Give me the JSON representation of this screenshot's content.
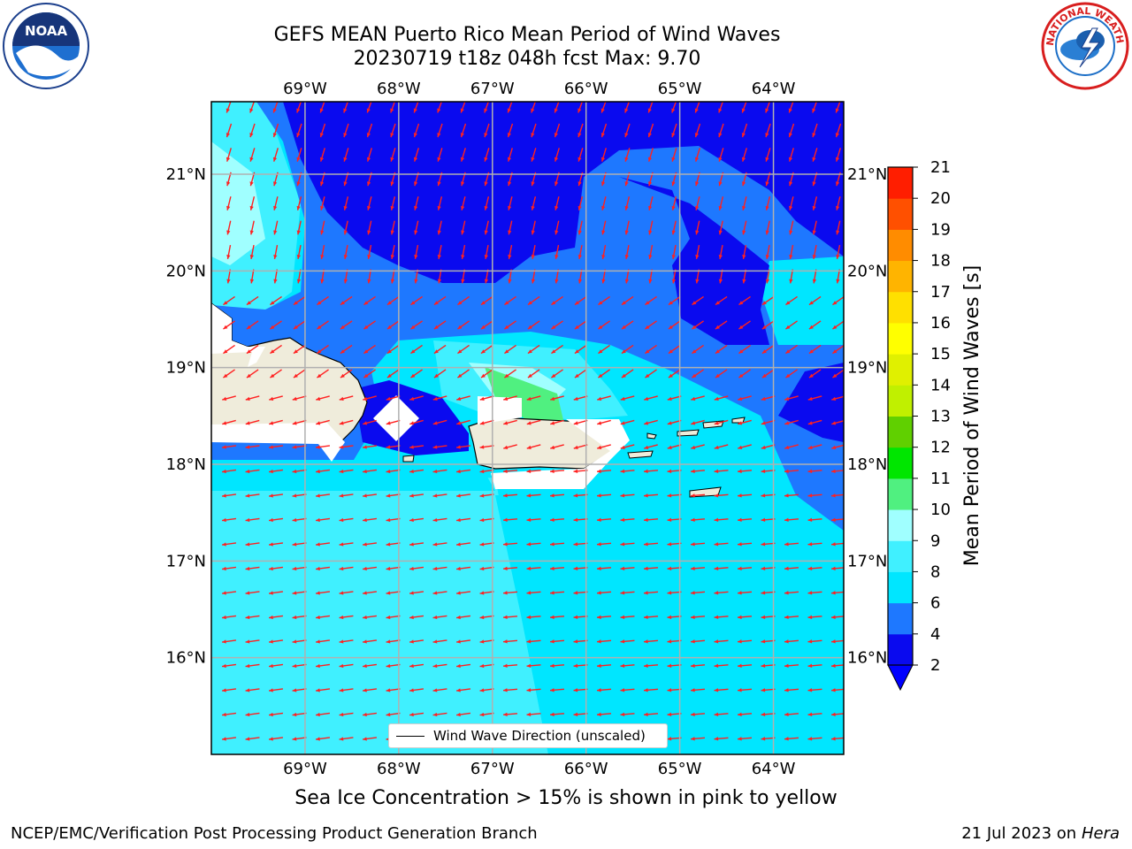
{
  "title": {
    "line1": "GEFS MEAN Puerto Rico Mean Period of Wind Waves",
    "line2": "20230719 t18z 048h fcst   Max: 9.70"
  },
  "logos": {
    "left": "noaa-logo",
    "left_text": "NOAA",
    "right": "nws-logo",
    "right_text": "NATIONAL WEATHER SERVICE"
  },
  "map": {
    "lon_range": [
      -70.0,
      -63.25
    ],
    "lat_range": [
      15.0,
      21.75
    ],
    "lon_labels": [
      {
        "value": -69,
        "label": "69°W"
      },
      {
        "value": -68,
        "label": "68°W"
      },
      {
        "value": -67,
        "label": "67°W"
      },
      {
        "value": -66,
        "label": "66°W"
      },
      {
        "value": -65,
        "label": "65°W"
      },
      {
        "value": -64,
        "label": "64°W"
      }
    ],
    "lat_labels": [
      {
        "value": 21,
        "label": "21°N"
      },
      {
        "value": 20,
        "label": "20°N"
      },
      {
        "value": 19,
        "label": "19°N"
      },
      {
        "value": 18,
        "label": "18°N"
      },
      {
        "value": 17,
        "label": "17°N"
      },
      {
        "value": 16,
        "label": "16°N"
      }
    ],
    "grid": true,
    "land_color": "#efecdb",
    "arrow_color": "#ff2020"
  },
  "colorbar": {
    "label": "Mean Period of Wind Waves [s]",
    "ticks": [
      "2",
      "4",
      "6",
      "8",
      "9",
      "10",
      "11",
      "12",
      "13",
      "14",
      "15",
      "16",
      "17",
      "18",
      "19",
      "20",
      "21"
    ],
    "colors": [
      "#0a0aef",
      "#1e78ff",
      "#00e6ff",
      "#40f0ff",
      "#a0ffff",
      "#50f080",
      "#00e600",
      "#60d000",
      "#c0f000",
      "#e0f000",
      "#ffff00",
      "#ffe000",
      "#ffb400",
      "#ff8c00",
      "#ff5000",
      "#ff1e00"
    ],
    "extend_min_color": "#0000ff"
  },
  "legend": {
    "label": "Wind Wave Direction (unscaled)"
  },
  "note": "Sea Ice Concentration > 15% is shown in pink to yellow",
  "footer": {
    "left": "NCEP/EMC/Verification Post Processing Product Generation Branch",
    "date": "21 Jul 2023 on ",
    "host": "Hera"
  },
  "chart_data": {
    "type": "heatmap",
    "title": "GEFS MEAN Puerto Rico Mean Period of Wind Waves",
    "subtitle": "20230719 t18z 048h fcst   Max: 9.70",
    "variable": "Mean Period of Wind Waves [s]",
    "max": 9.7,
    "colorbar_levels": [
      2,
      4,
      6,
      8,
      9,
      10,
      11,
      12,
      13,
      14,
      15,
      16,
      17,
      18,
      19,
      20,
      21
    ],
    "xlabel": "",
    "ylabel": "",
    "xlim": [
      -70.0,
      -63.25
    ],
    "ylim": [
      15.0,
      21.75
    ],
    "regions": [
      {
        "name": "",
        "level": "2-4",
        "area": "north Atlantic, north of ~20°N east of 68.5°W, and east of PR near 64°W 18.5–19.5°N"
      },
      {
        "name": "",
        "level": "4-6",
        "area": "band between open Atlantic and Mona Passage / north of PR"
      },
      {
        "name": "",
        "level": "6-8",
        "area": "Caribbean Sea south of 18°N and west near Hispaniola"
      },
      {
        "name": "",
        "level": "8-9",
        "area": "south-central Caribbean and NW corner"
      },
      {
        "name": "",
        "level": "9-10",
        "area": "small patch NW of Puerto Rico near 66.5°W 18.7°N"
      }
    ],
    "wind_wave_direction": "mostly from east-northeast (arrows pointing west/southwest)"
  }
}
